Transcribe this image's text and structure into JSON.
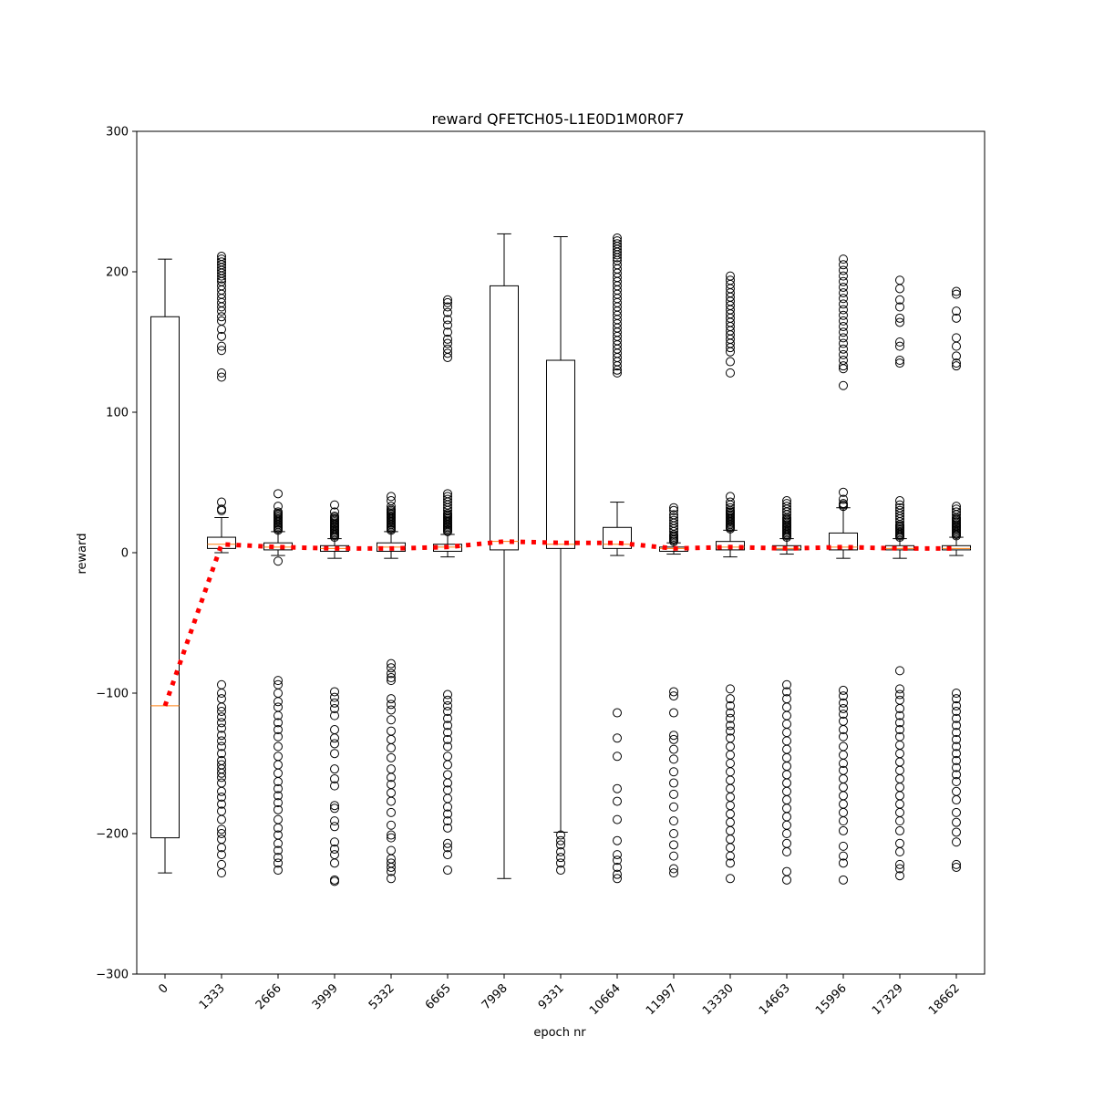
{
  "chart_data": {
    "type": "box",
    "title": "reward QFETCH05-L1E0D1M0R0F7",
    "xlabel": "epoch nr",
    "ylabel": "reward",
    "ylim": [
      -300,
      300
    ],
    "yticks": [
      -300,
      -200,
      -100,
      0,
      100,
      200,
      300
    ],
    "categories": [
      "0",
      "1333",
      "2666",
      "3999",
      "5332",
      "6665",
      "7998",
      "9331",
      "10664",
      "11997",
      "13330",
      "14663",
      "15996",
      "17329",
      "18662"
    ],
    "boxes": [
      {
        "q1": -203,
        "median": -109,
        "q3": 168,
        "whisker_low": -228,
        "whisker_high": 209
      },
      {
        "q1": 3,
        "median": 6,
        "q3": 11,
        "whisker_low": 0,
        "whisker_high": 25
      },
      {
        "q1": 2,
        "median": 4,
        "q3": 7,
        "whisker_low": -2,
        "whisker_high": 15
      },
      {
        "q1": 1,
        "median": 3,
        "q3": 5,
        "whisker_low": -4,
        "whisker_high": 10
      },
      {
        "q1": 1,
        "median": 4,
        "q3": 7,
        "whisker_low": -4,
        "whisker_high": 15
      },
      {
        "q1": 1,
        "median": 4,
        "q3": 6,
        "whisker_low": -3,
        "whisker_high": 13
      },
      {
        "q1": 2,
        "median": 8,
        "q3": 190,
        "whisker_low": -232,
        "whisker_high": 227
      },
      {
        "q1": 3,
        "median": 6,
        "q3": 137,
        "whisker_low": -199,
        "whisker_high": 225
      },
      {
        "q1": 3,
        "median": 6,
        "q3": 18,
        "whisker_low": -2,
        "whisker_high": 36
      },
      {
        "q1": 1,
        "median": 3,
        "q3": 4,
        "whisker_low": -1,
        "whisker_high": 7
      },
      {
        "q1": 2,
        "median": 4,
        "q3": 8,
        "whisker_low": -3,
        "whisker_high": 16
      },
      {
        "q1": 2,
        "median": 3,
        "q3": 5,
        "whisker_low": -1,
        "whisker_high": 10
      },
      {
        "q1": 2,
        "median": 4,
        "q3": 14,
        "whisker_low": -4,
        "whisker_high": 32
      },
      {
        "q1": 2,
        "median": 3,
        "q3": 5,
        "whisker_low": -4,
        "whisker_high": 10
      },
      {
        "q1": 2,
        "median": 3,
        "q3": 5,
        "whisker_low": -2,
        "whisker_high": 11
      }
    ],
    "outliers": [
      [],
      [
        211,
        209,
        207,
        205,
        203,
        201,
        199,
        197,
        195,
        193,
        190,
        187,
        184,
        181,
        178,
        175,
        172,
        168,
        165,
        159,
        154,
        147,
        144,
        128,
        125,
        36,
        31,
        30,
        -94,
        -100,
        -104,
        -110,
        -113,
        -117,
        -121,
        -125,
        -130,
        -134,
        -138,
        -143,
        -148,
        -151,
        -154,
        -157,
        -160,
        -164,
        -170,
        -174,
        -179,
        -184,
        -190,
        -197,
        -200,
        -204,
        -210,
        -215,
        -222,
        -228
      ],
      [
        42,
        33,
        29,
        28,
        27,
        26,
        25,
        24,
        23,
        22,
        21,
        20,
        19,
        18,
        17,
        16,
        -6,
        -91,
        -94,
        -100,
        -106,
        -110,
        -116,
        -121,
        -126,
        -131,
        -138,
        -145,
        -151,
        -157,
        -163,
        -168,
        -173,
        -178,
        -183,
        -190,
        -196,
        -201,
        -207,
        -212,
        -217,
        -221,
        -226
      ],
      [
        34,
        29,
        26,
        25,
        24,
        23,
        22,
        21,
        20,
        19,
        18,
        17,
        16,
        15,
        14,
        13,
        12,
        11,
        -99,
        -103,
        -107,
        -111,
        -116,
        -126,
        -132,
        -136,
        -143,
        -154,
        -161,
        -166,
        -180,
        -182,
        -191,
        -195,
        -206,
        -211,
        -215,
        -221,
        -233,
        -234
      ],
      [
        40,
        37,
        33,
        31,
        30,
        29,
        28,
        27,
        26,
        25,
        24,
        23,
        22,
        21,
        20,
        19,
        18,
        17,
        16,
        -79,
        -82,
        -86,
        -89,
        -91,
        -104,
        -108,
        -112,
        -119,
        -127,
        -133,
        -139,
        -146,
        -154,
        -160,
        -165,
        -171,
        -177,
        -185,
        -194,
        -201,
        -203,
        -212,
        -218,
        -221,
        -224,
        -227,
        -232
      ],
      [
        180,
        178,
        175,
        171,
        166,
        162,
        157,
        152,
        149,
        145,
        142,
        139,
        42,
        40,
        38,
        36,
        34,
        32,
        30,
        28,
        27,
        26,
        25,
        24,
        23,
        22,
        21,
        20,
        19,
        18,
        17,
        16,
        15,
        -101,
        -105,
        -109,
        -113,
        -118,
        -123,
        -128,
        -133,
        -138,
        -145,
        -151,
        -158,
        -164,
        -169,
        -175,
        -181,
        -186,
        -191,
        -196,
        -207,
        -210,
        -215,
        -226
      ],
      [],
      [
        -201,
        -205,
        -208,
        -213,
        -217,
        -221,
        -226
      ],
      [
        224,
        222,
        220,
        218,
        216,
        214,
        212,
        210,
        208,
        205,
        202,
        199,
        196,
        193,
        190,
        187,
        184,
        181,
        178,
        175,
        172,
        169,
        166,
        163,
        160,
        157,
        154,
        151,
        148,
        145,
        142,
        139,
        136,
        133,
        130,
        128,
        -114,
        -132,
        -145,
        -168,
        -177,
        -190,
        -205,
        -215,
        -219,
        -224,
        -229,
        -232
      ],
      [
        32,
        30,
        27,
        25,
        23,
        21,
        19,
        17,
        15,
        13,
        12,
        11,
        10,
        9,
        8,
        -99,
        -102,
        -114,
        -130,
        -133,
        -140,
        -147,
        -156,
        -164,
        -172,
        -181,
        -191,
        -200,
        -208,
        -216,
        -225,
        -228
      ],
      [
        197,
        194,
        191,
        188,
        185,
        182,
        179,
        176,
        173,
        170,
        167,
        164,
        161,
        158,
        155,
        152,
        149,
        146,
        143,
        136,
        128,
        40,
        36,
        34,
        32,
        30,
        29,
        28,
        27,
        26,
        25,
        24,
        23,
        22,
        21,
        20,
        19,
        18,
        17,
        -97,
        -104,
        -109,
        -114,
        -118,
        -123,
        -127,
        -132,
        -138,
        -144,
        -150,
        -156,
        -162,
        -168,
        -174,
        -180,
        -186,
        -192,
        -198,
        -204,
        -210,
        -216,
        -221,
        -232
      ],
      [
        37,
        35,
        33,
        31,
        29,
        27,
        25,
        24,
        23,
        22,
        21,
        20,
        19,
        18,
        17,
        16,
        15,
        14,
        13,
        12,
        11,
        -94,
        -99,
        -104,
        -110,
        -116,
        -122,
        -128,
        -134,
        -140,
        -146,
        -152,
        -158,
        -164,
        -170,
        -176,
        -182,
        -188,
        -194,
        -200,
        -207,
        -213,
        -227,
        -233
      ],
      [
        209,
        205,
        201,
        197,
        193,
        189,
        185,
        181,
        177,
        173,
        169,
        165,
        161,
        157,
        153,
        149,
        145,
        141,
        137,
        133,
        131,
        119,
        43,
        38,
        35,
        34,
        33,
        -98,
        -102,
        -107,
        -111,
        -115,
        -120,
        -126,
        -131,
        -138,
        -144,
        -150,
        -155,
        -161,
        -167,
        -173,
        -179,
        -185,
        -191,
        -198,
        -209,
        -216,
        -221,
        -233
      ],
      [
        194,
        188,
        180,
        175,
        167,
        164,
        150,
        147,
        137,
        135,
        37,
        34,
        32,
        30,
        28,
        26,
        24,
        22,
        20,
        19,
        18,
        17,
        16,
        15,
        14,
        13,
        12,
        11,
        -84,
        -97,
        -101,
        -105,
        -111,
        -116,
        -121,
        -126,
        -131,
        -137,
        -143,
        -149,
        -155,
        -161,
        -167,
        -173,
        -179,
        -185,
        -191,
        -198,
        -207,
        -213,
        -222,
        -225,
        -230
      ],
      [
        186,
        184,
        172,
        167,
        153,
        147,
        140,
        135,
        133,
        33,
        31,
        29,
        27,
        25,
        24,
        23,
        22,
        21,
        20,
        19,
        18,
        17,
        16,
        15,
        14,
        13,
        12,
        -100,
        -104,
        -109,
        -113,
        -118,
        -123,
        -128,
        -133,
        -138,
        -143,
        -148,
        -153,
        -158,
        -163,
        -170,
        -176,
        -185,
        -192,
        -199,
        -206,
        -222,
        -224
      ]
    ],
    "mean_line": {
      "values": [
        -109,
        6,
        4,
        3,
        3,
        4,
        8,
        7,
        7,
        3,
        4,
        3,
        4,
        3,
        3
      ],
      "color": "#ff0000",
      "style": "dotted"
    },
    "median_color": "#ff7f0e",
    "box_color": "#000000",
    "grid": false,
    "legend": "none"
  }
}
